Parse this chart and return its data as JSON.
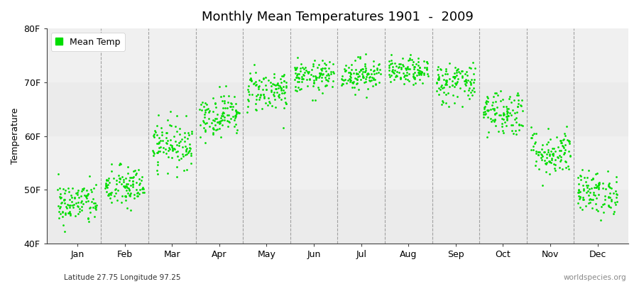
{
  "title": "Monthly Mean Temperatures 1901  -  2009",
  "ylabel": "Temperature",
  "bottom_left_label": "Latitude 27.75 Longitude 97.25",
  "bottom_right_label": "worldspecies.org",
  "dot_color": "#00DD00",
  "plot_bg_light": "#EBEBEB",
  "plot_bg_dark": "#DCDCDC",
  "figure_background": "#FFFFFF",
  "ytick_labels": [
    "40F",
    "50F",
    "60F",
    "70F",
    "80F"
  ],
  "ytick_values": [
    40,
    50,
    60,
    70,
    80
  ],
  "ylim": [
    40,
    80
  ],
  "months": [
    "Jan",
    "Feb",
    "Mar",
    "Apr",
    "May",
    "Jun",
    "Jul",
    "Aug",
    "Sep",
    "Oct",
    "Nov",
    "Dec"
  ],
  "month_mean_temps_F": [
    47.5,
    50.5,
    58.5,
    64.0,
    68.5,
    71.0,
    71.5,
    72.0,
    70.0,
    64.5,
    57.0,
    49.5
  ],
  "month_spread": [
    2.0,
    2.0,
    2.2,
    2.0,
    2.0,
    1.5,
    1.5,
    1.2,
    2.0,
    2.2,
    2.2,
    2.0
  ],
  "n_years": 109,
  "legend_label": "Mean Temp",
  "dot_size": 4,
  "title_fontsize": 13,
  "label_fontsize": 9,
  "tick_fontsize": 9
}
